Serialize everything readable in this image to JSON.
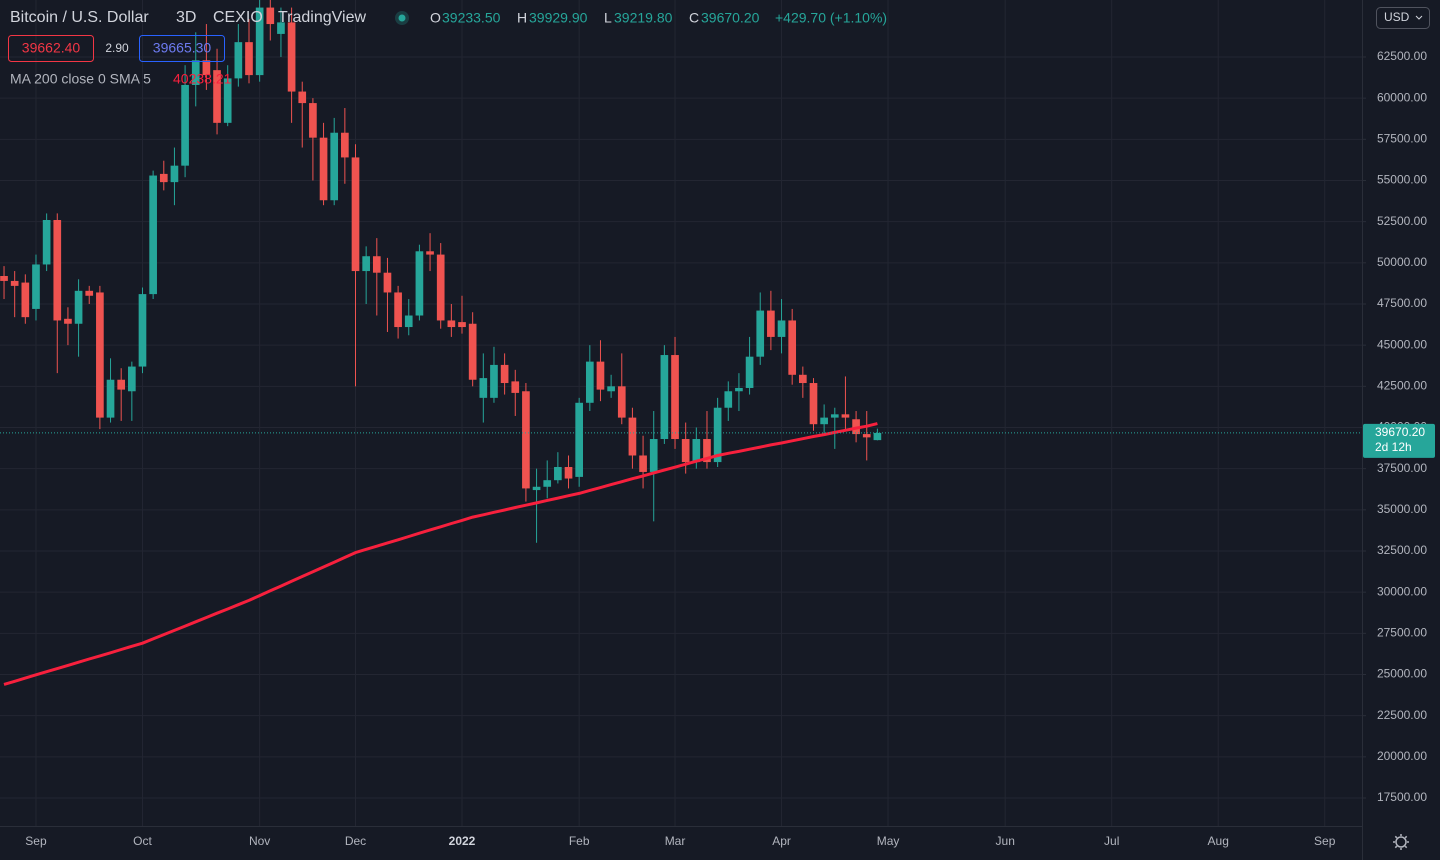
{
  "chart_data": {
    "type": "candlestick",
    "title": "Bitcoin / U.S. Dollar",
    "interval": "3D",
    "exchange": "CEXIO",
    "source": "TradingView",
    "ohlc_labels": [
      "O",
      "H",
      "L",
      "C"
    ],
    "ohlc_text": [
      "39233.50",
      "39929.90",
      "39219.80",
      "39670.20"
    ],
    "change": "+429.70 (+1.10%)",
    "bid": "39662.40",
    "spread": "2.90",
    "ask": "39665.30",
    "last_price_label": "39670.20",
    "countdown": "2d 12h",
    "currency": "USD",
    "up_color": "#26a69a",
    "down_color": "#ef5350",
    "grid": true,
    "categories": [
      null,
      null,
      null,
      "Sep",
      null,
      null,
      null,
      null,
      null,
      null,
      null,
      null,
      null,
      "Oct",
      null,
      null,
      null,
      null,
      null,
      null,
      null,
      null,
      null,
      null,
      "Nov",
      null,
      null,
      null,
      null,
      null,
      null,
      null,
      null,
      "Dec",
      null,
      null,
      null,
      null,
      null,
      null,
      null,
      null,
      null,
      "2022",
      null,
      null,
      null,
      null,
      null,
      null,
      null,
      null,
      null,
      null,
      "Feb",
      null,
      null,
      null,
      null,
      null,
      null,
      null,
      null,
      "Mar",
      null,
      null,
      null,
      null,
      null,
      null,
      null,
      null,
      null,
      "Apr",
      null,
      null,
      null,
      null,
      null,
      null,
      null,
      null,
      null,
      "May",
      null,
      null,
      null,
      null,
      null,
      null,
      null,
      null,
      null,
      null,
      "Jun",
      null,
      null,
      null,
      null,
      null,
      null,
      null,
      null,
      null,
      "Jul",
      null,
      null,
      null,
      null,
      null,
      null,
      null,
      null,
      null,
      "Aug",
      null,
      null,
      null,
      null,
      null,
      null,
      null,
      null,
      null,
      "Sep",
      null,
      null,
      null
    ],
    "open": [
      49200,
      48900,
      48800,
      47200,
      49900,
      52600,
      46600,
      46300,
      48300,
      48200,
      40600,
      42900,
      42200,
      43700,
      48100,
      55400,
      54900,
      55900,
      60800,
      62300,
      61700,
      58500,
      61200,
      63400,
      61400,
      65500,
      63900,
      64600,
      60400,
      59700,
      57600,
      53800,
      57900,
      56400,
      49500,
      50400,
      49400,
      48200,
      46100,
      46800,
      50700,
      50500,
      46500,
      46400,
      46300,
      41800,
      41800,
      43800,
      42800,
      42200,
      36200,
      36400,
      36800,
      37600,
      37000,
      41500,
      44000,
      42200,
      42500,
      40600,
      38300,
      37300,
      39300,
      44400,
      39300,
      37900,
      39300,
      37900,
      41200,
      42200,
      42400,
      44300,
      47100,
      45500,
      46500,
      43200,
      42700,
      40200,
      40600,
      40800,
      40500,
      39600,
      39233.5,
      null,
      null,
      null,
      null,
      null,
      null,
      null,
      null,
      null,
      null,
      null,
      null,
      null,
      null,
      null,
      null,
      null,
      null,
      null,
      null,
      null,
      null,
      null,
      null,
      null,
      null,
      null,
      null,
      null,
      null,
      null,
      null,
      null,
      null,
      null,
      null,
      null,
      null,
      null,
      null,
      null,
      null,
      null,
      null,
      null
    ],
    "high": [
      49800,
      49500,
      49300,
      50500,
      53000,
      53000,
      47300,
      49000,
      48600,
      48600,
      44200,
      43600,
      44000,
      48500,
      55600,
      56200,
      57000,
      62000,
      64000,
      64500,
      63000,
      62000,
      64500,
      64800,
      66000,
      66000,
      65500,
      65500,
      61000,
      60000,
      58500,
      58800,
      59400,
      57200,
      51000,
      51500,
      50300,
      48600,
      47800,
      51100,
      51800,
      51200,
      47500,
      48000,
      47000,
      44500,
      44900,
      44500,
      43500,
      42700,
      37500,
      38000,
      38500,
      38300,
      41800,
      45000,
      45300,
      43200,
      44500,
      41200,
      39500,
      41000,
      45000,
      45500,
      40300,
      40000,
      41000,
      41800,
      42800,
      43300,
      45500,
      48200,
      48300,
      47800,
      47200,
      43700,
      43000,
      41400,
      41200,
      43100,
      41000,
      41000,
      39929.9,
      null,
      null,
      null,
      null,
      null,
      null,
      null,
      null,
      null,
      null,
      null,
      null,
      null,
      null,
      null,
      null,
      null,
      null,
      null,
      null,
      null,
      null,
      null,
      null,
      null,
      null,
      null,
      null,
      null,
      null,
      null,
      null,
      null,
      null,
      null,
      null,
      null,
      null,
      null,
      null,
      null,
      null,
      null,
      null,
      null
    ],
    "low": [
      47800,
      46700,
      46300,
      46500,
      49500,
      43300,
      45000,
      44300,
      47500,
      39900,
      40300,
      40400,
      40400,
      43300,
      47800,
      54400,
      53500,
      55200,
      59500,
      60500,
      57800,
      58300,
      60700,
      60900,
      61000,
      63500,
      62500,
      58500,
      57000,
      55000,
      53500,
      53500,
      54800,
      42500,
      47500,
      46800,
      45800,
      45400,
      45600,
      46500,
      49500,
      46000,
      45500,
      45700,
      42500,
      40300,
      41500,
      42000,
      40700,
      35500,
      33000,
      35700,
      36600,
      36300,
      36400,
      41000,
      41600,
      41800,
      40200,
      37500,
      36300,
      34300,
      39000,
      38700,
      37200,
      37500,
      37500,
      37600,
      40400,
      41000,
      42000,
      43800,
      44700,
      44500,
      42600,
      41800,
      39800,
      39600,
      38700,
      39800,
      39100,
      38000,
      39219.8,
      null,
      null,
      null,
      null,
      null,
      null,
      null,
      null,
      null,
      null,
      null,
      null,
      null,
      null,
      null,
      null,
      null,
      null,
      null,
      null,
      null,
      null,
      null,
      null,
      null,
      null,
      null,
      null,
      null,
      null,
      null,
      null,
      null,
      null,
      null,
      null,
      null,
      null,
      null,
      null,
      null,
      null,
      null,
      null,
      null
    ],
    "close": [
      48900,
      48600,
      46700,
      49900,
      52600,
      46500,
      46300,
      48300,
      48000,
      40600,
      42900,
      42300,
      43700,
      48100,
      55300,
      54900,
      55900,
      60800,
      62300,
      61400,
      58500,
      61200,
      63400,
      61400,
      65500,
      64500,
      64600,
      60400,
      59700,
      57600,
      53800,
      57900,
      56400,
      49500,
      50400,
      49400,
      48200,
      46100,
      46800,
      50700,
      50500,
      46500,
      46100,
      46100,
      42900,
      43000,
      43800,
      42700,
      42100,
      36300,
      36400,
      36800,
      37600,
      36900,
      41500,
      44000,
      42300,
      42500,
      40600,
      38300,
      37300,
      39300,
      44400,
      39300,
      37900,
      39300,
      37900,
      41200,
      42200,
      42400,
      44300,
      47100,
      45500,
      46500,
      43200,
      42700,
      40200,
      40600,
      40800,
      40600,
      39600,
      39400,
      39670.2,
      null,
      null,
      null,
      null,
      null,
      null,
      null,
      null,
      null,
      null,
      null,
      null,
      null,
      null,
      null,
      null,
      null,
      null,
      null,
      null,
      null,
      null,
      null,
      null,
      null,
      null,
      null,
      null,
      null,
      null,
      null,
      null,
      null,
      null,
      null,
      null,
      null,
      null,
      null,
      null,
      null,
      null,
      null,
      null,
      null
    ],
    "ma": {
      "name": "MA 200 close 0 SMA 5",
      "color": "#f7203d",
      "values": [
        24400,
        24590,
        24780,
        24980,
        25170,
        25360,
        25550,
        25750,
        25940,
        26130,
        26320,
        26520,
        26710,
        26900,
        27160,
        27420,
        27680,
        27940,
        28200,
        28460,
        28720,
        28980,
        29240,
        29500,
        29790,
        30080,
        30370,
        30660,
        30950,
        31240,
        31530,
        31820,
        32110,
        32400,
        32600,
        32790,
        32990,
        33180,
        33380,
        33580,
        33780,
        33970,
        34170,
        34360,
        34560,
        34700,
        34850,
        34990,
        35140,
        35280,
        35420,
        35570,
        35710,
        35860,
        36000,
        36180,
        36350,
        36530,
        36710,
        36890,
        37060,
        37240,
        37420,
        37590,
        37770,
        37950,
        38120,
        38300,
        38430,
        38550,
        38680,
        38810,
        38940,
        39060,
        39190,
        39320,
        39450,
        39570,
        39700,
        39830,
        39960,
        40080,
        40238.21,
        null,
        null,
        null,
        null,
        null,
        null,
        null,
        null,
        null,
        null,
        null,
        null,
        null,
        null,
        null,
        null,
        null,
        null,
        null,
        null,
        null,
        null,
        null,
        null,
        null,
        null,
        null,
        null,
        null,
        null,
        null,
        null,
        null,
        null,
        null,
        null,
        null,
        null,
        null,
        null,
        null,
        null,
        null,
        null,
        null
      ]
    },
    "ylim": [
      15800,
      65960
    ],
    "yticks": [
      {
        "value": 17500,
        "label": "17500.00"
      },
      {
        "value": 20000,
        "label": "20000.00"
      },
      {
        "value": 22500,
        "label": "22500.00"
      },
      {
        "value": 25000,
        "label": "25000.00"
      },
      {
        "value": 27500,
        "label": "27500.00"
      },
      {
        "value": 30000,
        "label": "30000.00"
      },
      {
        "value": 32500,
        "label": "32500.00"
      },
      {
        "value": 35000,
        "label": "35000.00"
      },
      {
        "value": 37500,
        "label": "37500.00"
      },
      {
        "value": 40000,
        "label": "40000.00"
      },
      {
        "value": 42500,
        "label": "42500.00"
      },
      {
        "value": 45000,
        "label": "45000.00"
      },
      {
        "value": 47500,
        "label": "47500.00"
      },
      {
        "value": 50000,
        "label": "50000.00"
      },
      {
        "value": 52500,
        "label": "52500.00"
      },
      {
        "value": 55000,
        "label": "55000.00"
      },
      {
        "value": 57500,
        "label": "57500.00"
      },
      {
        "value": 60000,
        "label": "60000.00"
      },
      {
        "value": 62500,
        "label": "62500.00"
      }
    ]
  }
}
